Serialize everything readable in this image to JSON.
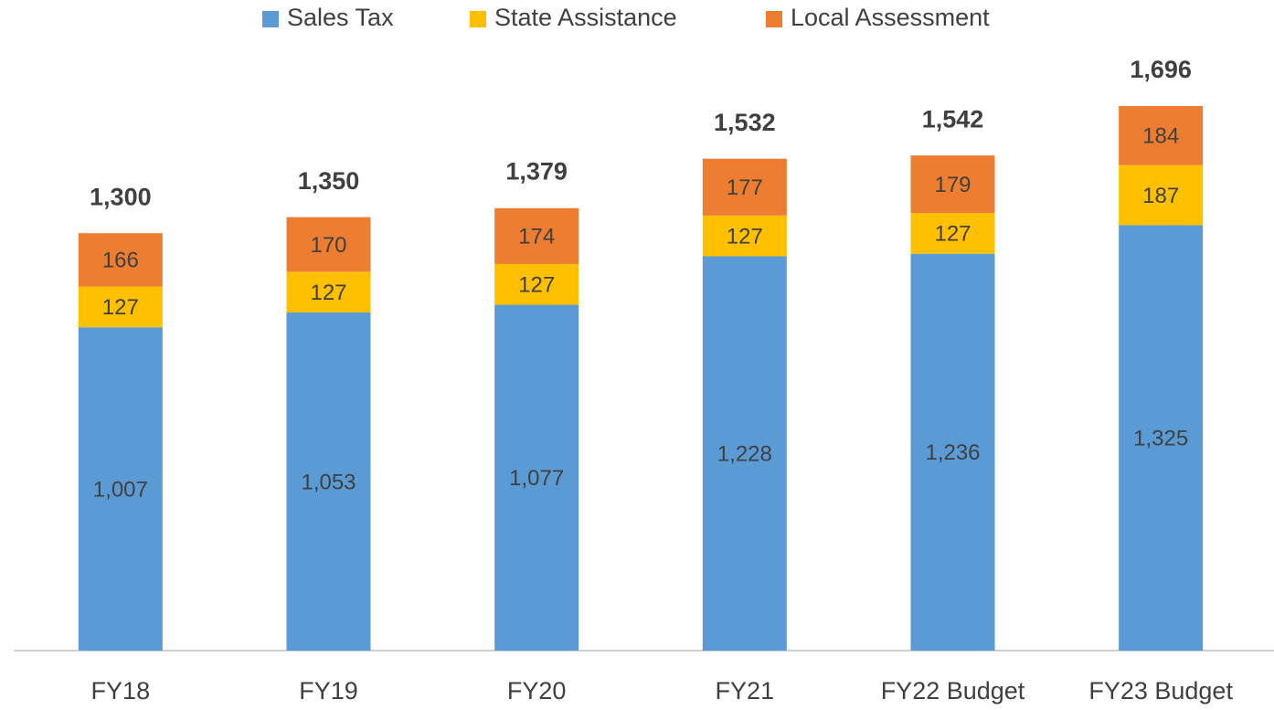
{
  "chart_data": {
    "type": "stacked_bar",
    "categories": [
      "FY18",
      "FY19",
      "FY20",
      "FY21",
      "FY22 Budget",
      "FY23 Budget"
    ],
    "series": [
      {
        "name": "Sales Tax",
        "color": "#5b9bd5",
        "values": [
          1007,
          1053,
          1077,
          1228,
          1236,
          1325
        ],
        "value_labels": [
          "1,007",
          "1,053",
          "1,077",
          "1,228",
          "1,236",
          "1,325"
        ]
      },
      {
        "name": "State Assistance",
        "color": "#ffc000",
        "values": [
          127,
          127,
          127,
          127,
          127,
          187
        ]
      },
      {
        "name": "Local Assessment",
        "color": "#ed7d31",
        "values": [
          166,
          170,
          174,
          177,
          179,
          184
        ]
      }
    ],
    "totals": [
      1300,
      1350,
      1379,
      1532,
      1542,
      1696
    ],
    "total_labels": [
      "1,300",
      "1,350",
      "1,379",
      "1,532",
      "1,542",
      "1,696"
    ],
    "ylim": [
      0,
      1800
    ],
    "legend": "top"
  }
}
